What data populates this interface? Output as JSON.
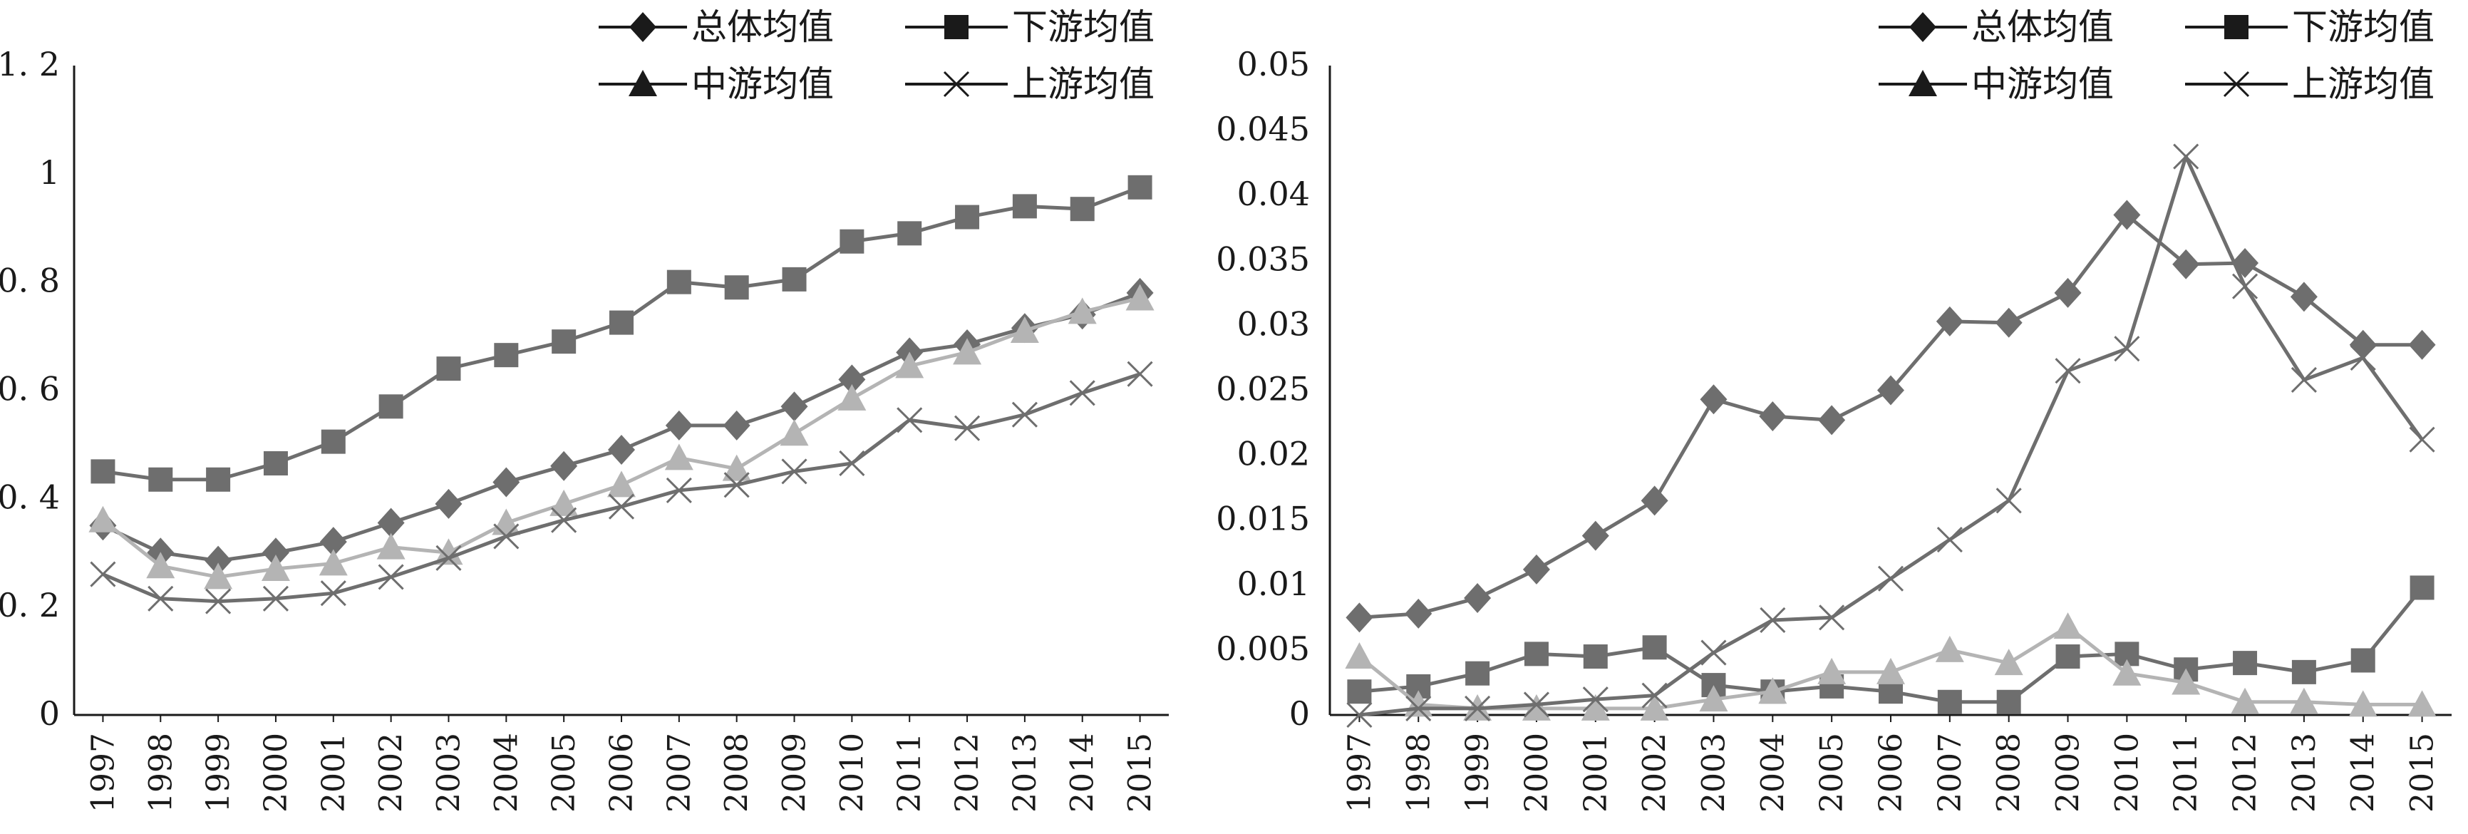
{
  "colors": {
    "overall": "#6e6e6e",
    "downstream": "#6e6e6e",
    "midstream": "#b4b4b4",
    "upstream": "#6e6e6e",
    "axis": "#1a1a1a"
  },
  "chart_data": [
    {
      "type": "line",
      "x": [
        "1997",
        "1998",
        "1999",
        "2000",
        "2001",
        "2002",
        "2003",
        "2004",
        "2005",
        "2006",
        "2007",
        "2008",
        "2009",
        "2010",
        "2011",
        "2012",
        "2013",
        "2014",
        "2015"
      ],
      "ylim": [
        0,
        1.2
      ],
      "yticks": [
        {
          "v": 0,
          "label": "0"
        },
        {
          "v": 0.2,
          "label": "0. 2"
        },
        {
          "v": 0.4,
          "label": "0. 4"
        },
        {
          "v": 0.6,
          "label": "0. 6"
        },
        {
          "v": 0.8,
          "label": "0. 8"
        },
        {
          "v": 1,
          "label": "1"
        },
        {
          "v": 1.2,
          "label": "1. 2"
        }
      ],
      "grid": false,
      "legend_position": "top-right",
      "series": [
        {
          "name": "总体均值",
          "marker": "diamond",
          "color": "overall",
          "values": [
            0.35,
            0.3,
            0.285,
            0.3,
            0.32,
            0.355,
            0.39,
            0.43,
            0.46,
            0.49,
            0.535,
            0.535,
            0.57,
            0.62,
            0.67,
            0.685,
            0.715,
            0.74,
            0.78
          ]
        },
        {
          "name": "下游均值",
          "marker": "square",
          "color": "downstream",
          "values": [
            0.45,
            0.435,
            0.435,
            0.465,
            0.505,
            0.57,
            0.64,
            0.665,
            0.69,
            0.725,
            0.8,
            0.79,
            0.805,
            0.875,
            0.89,
            0.92,
            0.94,
            0.935,
            0.975
          ]
        },
        {
          "name": "中游均值",
          "marker": "triangle",
          "color": "midstream",
          "values": [
            0.36,
            0.275,
            0.255,
            0.27,
            0.28,
            0.31,
            0.3,
            0.355,
            0.39,
            0.425,
            0.475,
            0.455,
            0.52,
            0.585,
            0.645,
            0.67,
            0.71,
            0.745,
            0.77
          ]
        },
        {
          "name": "上游均值",
          "marker": "cross",
          "color": "upstream",
          "values": [
            0.26,
            0.215,
            0.21,
            0.215,
            0.225,
            0.255,
            0.29,
            0.33,
            0.36,
            0.385,
            0.415,
            0.425,
            0.45,
            0.465,
            0.545,
            0.53,
            0.555,
            0.595,
            0.63
          ]
        }
      ]
    },
    {
      "type": "line",
      "x": [
        "1997",
        "1998",
        "1999",
        "2000",
        "2001",
        "2002",
        "2003",
        "2004",
        "2005",
        "2006",
        "2007",
        "2008",
        "2009",
        "2010",
        "2011",
        "2012",
        "2013",
        "2014",
        "2015"
      ],
      "ylim": [
        0,
        0.05
      ],
      "yticks": [
        {
          "v": 0,
          "label": "0"
        },
        {
          "v": 0.005,
          "label": "0.005"
        },
        {
          "v": 0.01,
          "label": "0.01"
        },
        {
          "v": 0.015,
          "label": "0.015"
        },
        {
          "v": 0.02,
          "label": "0.02"
        },
        {
          "v": 0.025,
          "label": "0.025"
        },
        {
          "v": 0.03,
          "label": "0.03"
        },
        {
          "v": 0.035,
          "label": "0.035"
        },
        {
          "v": 0.04,
          "label": "0.04"
        },
        {
          "v": 0.045,
          "label": "0.045"
        },
        {
          "v": 0.05,
          "label": "0.05"
        }
      ],
      "grid": false,
      "legend_position": "top-right",
      "series": [
        {
          "name": "总体均值",
          "marker": "diamond",
          "color": "overall",
          "values": [
            0.0075,
            0.0078,
            0.009,
            0.0112,
            0.0138,
            0.0165,
            0.0243,
            0.023,
            0.0227,
            0.025,
            0.0303,
            0.0302,
            0.0325,
            0.0385,
            0.0347,
            0.0348,
            0.0322,
            0.0285,
            0.0285
          ]
        },
        {
          "name": "下游均值",
          "marker": "square",
          "color": "downstream",
          "values": [
            0.0018,
            0.0022,
            0.0032,
            0.0047,
            0.0045,
            0.0052,
            0.0023,
            0.0018,
            0.0022,
            0.0018,
            0.001,
            0.001,
            0.0045,
            0.0047,
            0.0035,
            0.004,
            0.0033,
            0.0042,
            0.0098
          ]
        },
        {
          "name": "中游均值",
          "marker": "triangle",
          "color": "midstream",
          "values": [
            0.0045,
            0.0008,
            0.0005,
            0.0005,
            0.0005,
            0.0005,
            0.0012,
            0.0018,
            0.0033,
            0.0033,
            0.005,
            0.004,
            0.0068,
            0.0032,
            0.0025,
            0.001,
            0.001,
            0.0008,
            0.0008
          ]
        },
        {
          "name": "上游均值",
          "marker": "cross",
          "color": "upstream",
          "values": [
            0.0,
            0.0005,
            0.0005,
            0.0008,
            0.0012,
            0.0015,
            0.0048,
            0.0073,
            0.0075,
            0.0105,
            0.0135,
            0.0165,
            0.0265,
            0.0282,
            0.043,
            0.033,
            0.0258,
            0.0275,
            0.0212
          ]
        }
      ]
    }
  ]
}
